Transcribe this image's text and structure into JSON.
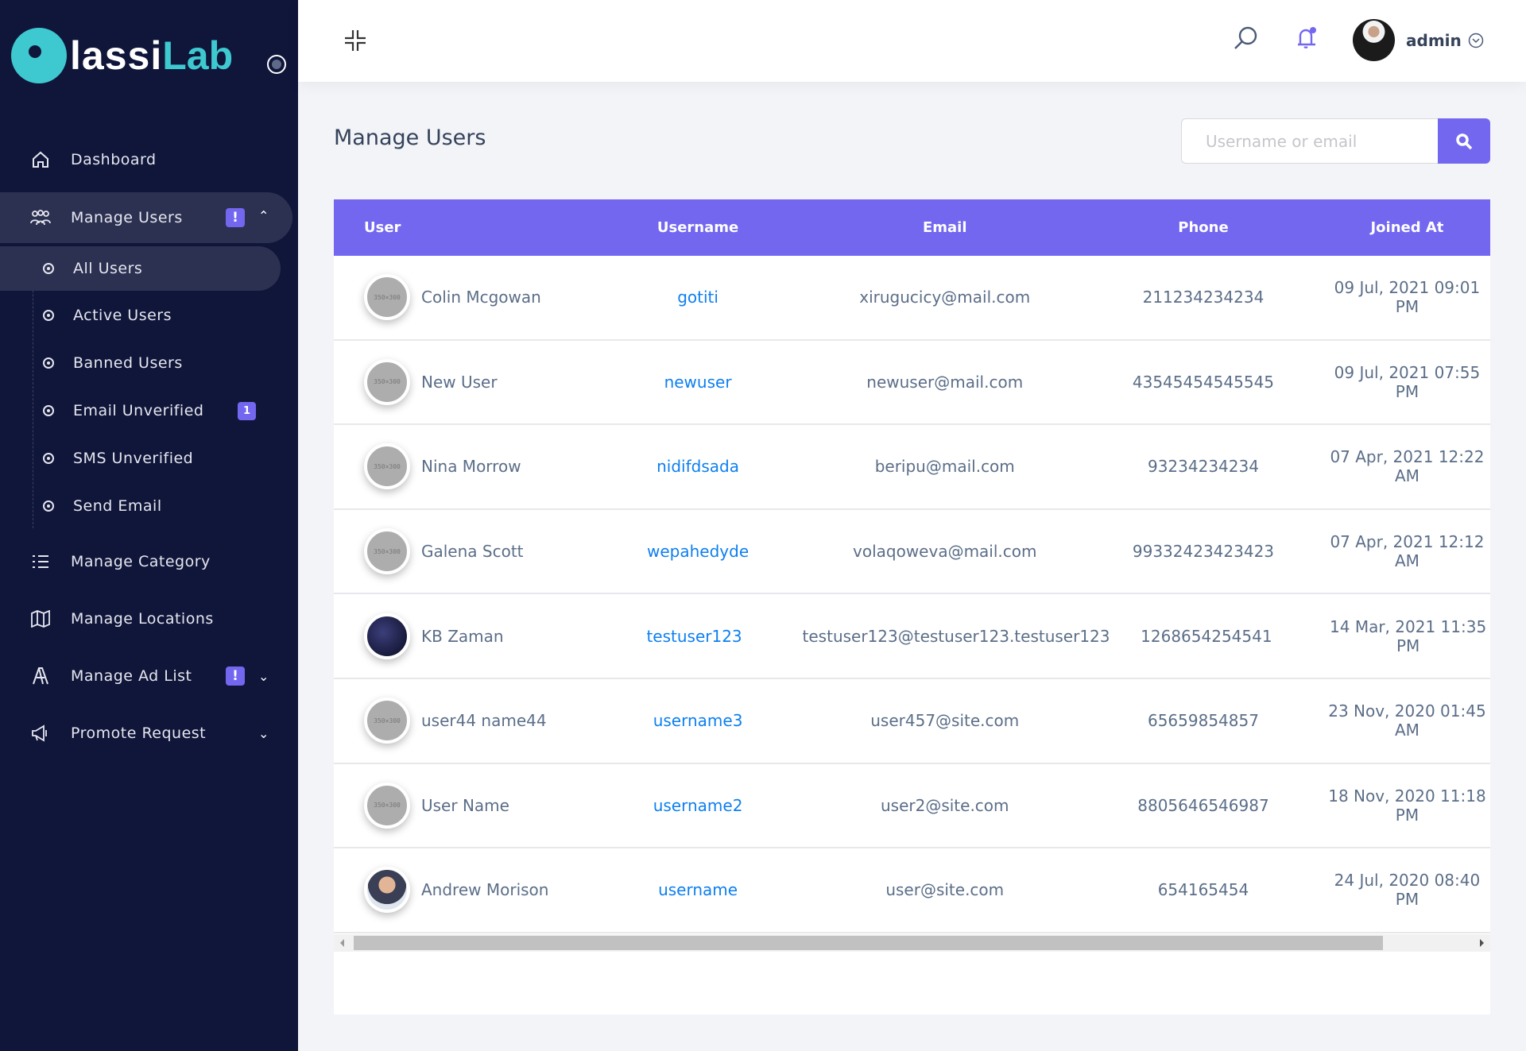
{
  "brand": {
    "logo_text": "ClassiLab",
    "logo_white": "lassi",
    "logo_teal": "Lab"
  },
  "colors": {
    "accent": "#7367f0",
    "sidebar": "#10163a",
    "link": "#0d7ff0",
    "teal": "#3ec9d0"
  },
  "sidebar": {
    "items": [
      {
        "label": "Dashboard",
        "icon": "home-icon"
      },
      {
        "label": "Manage Users",
        "icon": "users-icon",
        "badge": "!",
        "expanded": true
      },
      {
        "label": "Manage Category",
        "icon": "list-icon"
      },
      {
        "label": "Manage Locations",
        "icon": "map-icon"
      },
      {
        "label": "Manage Ad List",
        "icon": "ad-icon",
        "badge": "!"
      },
      {
        "label": "Promote Request",
        "icon": "megaphone-icon"
      }
    ],
    "sub_items": [
      {
        "label": "All Users",
        "active": true
      },
      {
        "label": "Active Users"
      },
      {
        "label": "Banned Users"
      },
      {
        "label": "Email Unverified",
        "badge": "1"
      },
      {
        "label": "SMS Unverified"
      },
      {
        "label": "Send Email"
      }
    ]
  },
  "topbar": {
    "user_name": "admin"
  },
  "main": {
    "title": "Manage Users",
    "search_placeholder": "Username or email",
    "columns": [
      "User",
      "Username",
      "Email",
      "Phone",
      "Joined At"
    ],
    "rows": [
      {
        "name": "Colin Mcgowan",
        "username": "gotiti",
        "email": "xirugucicy@mail.com",
        "phone": "211234234234",
        "joined": "09 Jul, 2021 09:01 PM",
        "avatar": "placeholder"
      },
      {
        "name": "New User",
        "username": "newuser",
        "email": "newuser@mail.com",
        "phone": "43545454545545",
        "joined": "09 Jul, 2021 07:55 PM",
        "avatar": "placeholder"
      },
      {
        "name": "Nina Morrow",
        "username": "nidifdsada",
        "email": "beripu@mail.com",
        "phone": "93234234234",
        "joined": "07 Apr, 2021 12:22 AM",
        "avatar": "placeholder"
      },
      {
        "name": "Galena Scott",
        "username": "wepahedyde",
        "email": "volaqoweva@mail.com",
        "phone": "99332423423423",
        "joined": "07 Apr, 2021 12:12 AM",
        "avatar": "placeholder"
      },
      {
        "name": "KB Zaman",
        "username": "testuser123",
        "email": "testuser123@testuser123.testuser123",
        "phone": "1268654254541",
        "joined": "14 Mar, 2021 11:35 PM",
        "avatar": "dark"
      },
      {
        "name": "user44 name44",
        "username": "username3",
        "email": "user457@site.com",
        "phone": "65659854857",
        "joined": "23 Nov, 2020 01:45 AM",
        "avatar": "placeholder"
      },
      {
        "name": "User Name",
        "username": "username2",
        "email": "user2@site.com",
        "phone": "8805646546987",
        "joined": "18 Nov, 2020 11:18 PM",
        "avatar": "placeholder"
      },
      {
        "name": "Andrew Morison",
        "username": "username",
        "email": "user@site.com",
        "phone": "654165454",
        "joined": "24 Jul, 2020 08:40 PM",
        "avatar": "photo"
      }
    ],
    "placeholder_text": "350×300"
  }
}
